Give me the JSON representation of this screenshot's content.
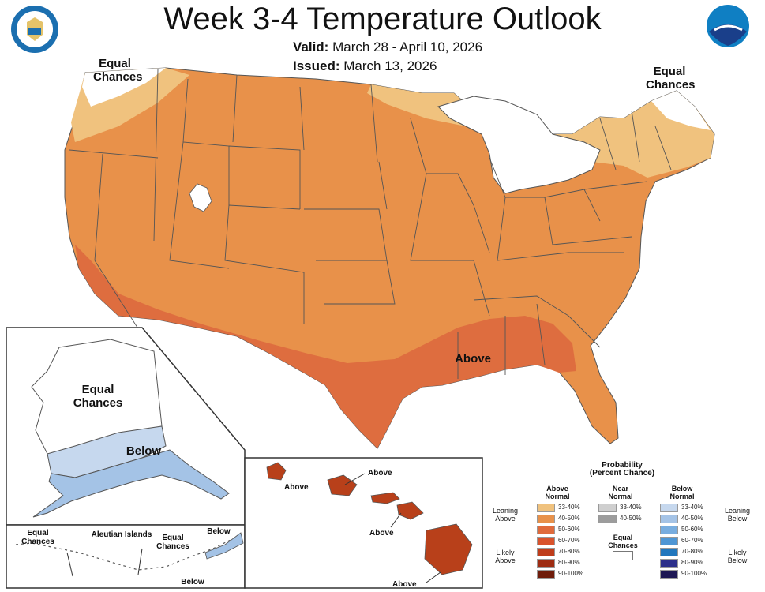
{
  "title": "Week 3-4 Temperature Outlook",
  "valid_label": "Valid:",
  "valid_dates": "March 28 - April 10, 2026",
  "issued_label": "Issued:",
  "issued_date": "March 13, 2026",
  "map_labels": {
    "conus_nw": "Equal Chances",
    "conus_ne": "Equal Chances",
    "conus_south": "Above",
    "alaska_ec": "Equal Chances",
    "alaska_below": "Below",
    "aleutian_title": "Aleutian Islands",
    "aleutian_ec_left": "Equal Chances",
    "aleutian_ec_mid": "Equal Chances",
    "aleutian_below_right": "Below",
    "aleutian_below_bottom": "Below",
    "hawaii_above_1": "Above",
    "hawaii_above_2": "Above",
    "hawaii_above_3": "Above",
    "hawaii_above_4": "Above"
  },
  "legend": {
    "title_line1": "Probability",
    "title_line2": "(Percent Chance)",
    "above_header": "Above Normal",
    "near_header": "Near Normal",
    "below_header": "Below Normal",
    "leaning_above": "Leaning Above",
    "likely_above": "Likely Above",
    "leaning_below": "Leaning Below",
    "likely_below": "Likely Below",
    "equal_chances": "Equal Chances",
    "above_ranges": [
      "33-40%",
      "40-50%",
      "50-60%",
      "60-70%",
      "70-80%",
      "80-90%",
      "90-100%"
    ],
    "above_colors": [
      "#f0c27e",
      "#e8914a",
      "#e06b3c",
      "#d9532c",
      "#bf3d1b",
      "#9e2c12",
      "#6f1c0a"
    ],
    "near_ranges": [
      "33-40%",
      "40-50%"
    ],
    "near_colors": [
      "#cfcfcf",
      "#9c9c9c"
    ],
    "below_ranges": [
      "33-40%",
      "40-50%",
      "50-60%",
      "60-70%",
      "70-80%",
      "80-90%",
      "90-100%"
    ],
    "below_colors": [
      "#c6d8ee",
      "#a4c3e6",
      "#78addf",
      "#4f96d4",
      "#2277bd",
      "#2c2f8a",
      "#1e1854"
    ]
  },
  "colors": {
    "ec": "#ffffff",
    "above_33_40": "#f0c27e",
    "above_40_50": "#e8914a",
    "above_50_60": "#de6d3f",
    "above_70_80": "#b8401a",
    "below_33_40": "#c6d8ee",
    "below_40_50": "#a4c3e6"
  },
  "logos": {
    "commerce": "Department of Commerce seal",
    "noaa": "NOAA"
  }
}
